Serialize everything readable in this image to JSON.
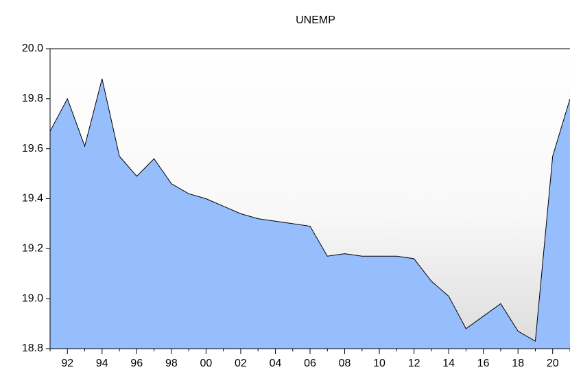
{
  "chart_data": {
    "type": "area",
    "title": "UNEMP",
    "categories": [
      null,
      "92",
      null,
      "94",
      null,
      "96",
      null,
      "98",
      null,
      "00",
      null,
      "02",
      null,
      "04",
      null,
      "06",
      null,
      "08",
      null,
      "10",
      null,
      "12",
      null,
      "14",
      null,
      "16",
      null,
      "18",
      null,
      "20",
      null
    ],
    "values": [
      19.67,
      19.8,
      19.61,
      19.88,
      19.57,
      19.49,
      19.56,
      19.46,
      19.42,
      19.4,
      19.37,
      19.34,
      19.32,
      19.31,
      19.3,
      19.29,
      19.17,
      19.18,
      19.17,
      19.17,
      19.17,
      19.16,
      19.07,
      19.01,
      18.88,
      18.93,
      18.98,
      18.87,
      18.83,
      19.57,
      19.8
    ],
    "color": "#96bdfc",
    "ylim": [
      18.8,
      20.0
    ],
    "yticks": [
      {
        "value": 18.8,
        "label": "18.8"
      },
      {
        "value": 19.0,
        "label": "19.0"
      },
      {
        "value": 19.2,
        "label": "19.2"
      },
      {
        "value": 19.4,
        "label": "19.4"
      },
      {
        "value": 19.6,
        "label": "19.6"
      },
      {
        "value": 19.8,
        "label": "19.8"
      },
      {
        "value": 20.0,
        "label": "20.0"
      }
    ]
  }
}
